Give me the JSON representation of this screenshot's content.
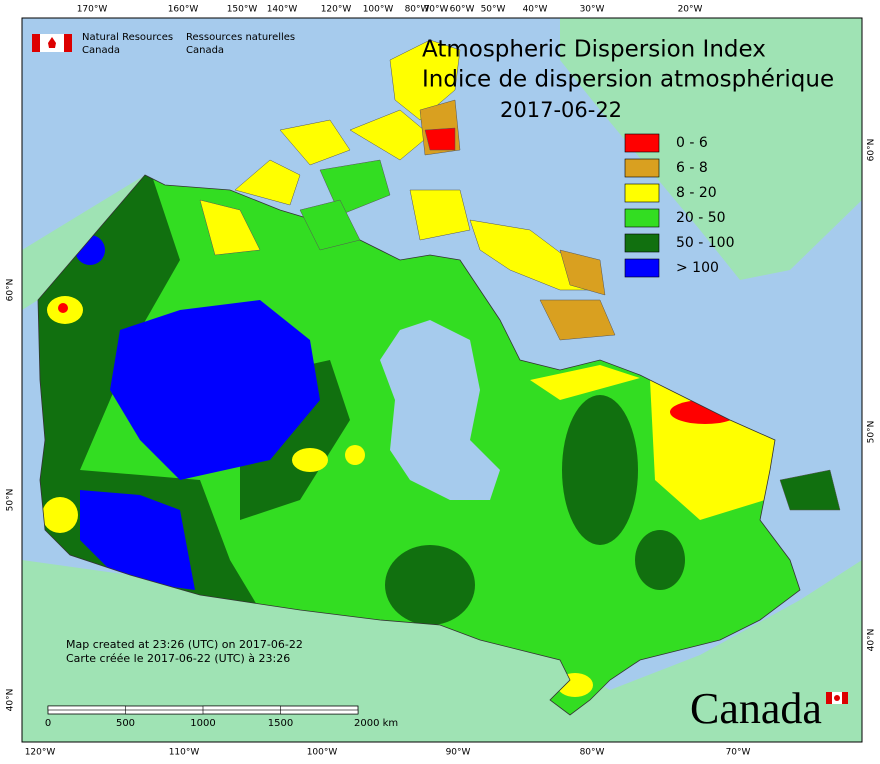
{
  "header": {
    "dept_en": [
      "Natural Resources",
      "Canada"
    ],
    "dept_fr": [
      "Ressources naturelles",
      "Canada"
    ]
  },
  "title": {
    "line1": "Atmospheric Dispersion Index",
    "line2": "Indice de dispersion atmosphérique",
    "date": "2017-06-22"
  },
  "legend": {
    "items": [
      {
        "label": "0 - 6",
        "color": "#ff0000"
      },
      {
        "label": "6 - 8",
        "color": "#d9a020"
      },
      {
        "label": "8 - 20",
        "color": "#ffff00"
      },
      {
        "label": "20 - 50",
        "color": "#33dd22"
      },
      {
        "label": "50 - 100",
        "color": "#11700f"
      },
      {
        "label": "> 100",
        "color": "#0000ff"
      }
    ]
  },
  "graticule": {
    "top": [
      "170°W",
      "160°W",
      "150°W",
      "140°W",
      "120°W",
      "100°W",
      "80°W",
      "70°W",
      "60°W",
      "50°W",
      "40°W",
      "30°W",
      "20°W"
    ],
    "bottom": [
      "120°W",
      "110°W",
      "100°W",
      "90°W",
      "80°W",
      "70°W"
    ],
    "left": [
      "60°N",
      "50°N",
      "40°N"
    ],
    "right": [
      "60°N",
      "50°N",
      "40°N"
    ]
  },
  "notes": [
    "Map created at 23:26 (UTC) on 2017-06-22",
    "Carte créée le 2017-06-22 (UTC) à 23:26"
  ],
  "scale": {
    "labels": [
      "0",
      "500",
      "1000",
      "1500",
      "2000 km"
    ]
  },
  "wordmark": "Canada"
}
